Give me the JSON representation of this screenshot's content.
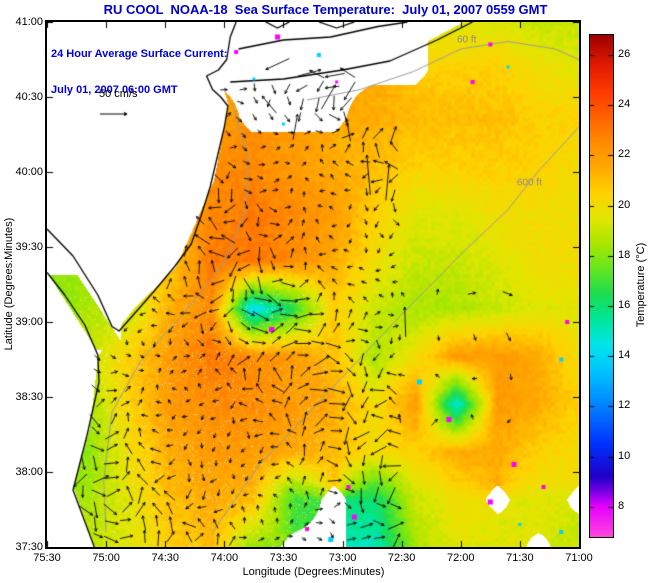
{
  "title": "RU COOL  NOAA-18  Sea Surface Temperature:  July 01, 2007 0559 GMT",
  "title_color": "#0000cc",
  "annotation": {
    "line1": "24 Hour Average Surface Current:",
    "line2": "July 01, 2007 06:00 GMT",
    "color": "#0000dd"
  },
  "scale_label": "50 cm/s",
  "axes": {
    "x_label": "Longitude (Degrees:Minutes)",
    "y_label": "Latitude (Degrees:Minutes)",
    "x_ticks": [
      "75:30",
      "75:00",
      "74:30",
      "74:00",
      "73:30",
      "73:00",
      "72:30",
      "72:00",
      "71:30",
      "71:00"
    ],
    "y_ticks": [
      "41:00",
      "40:30",
      "40:00",
      "39:30",
      "39:00",
      "38:30",
      "38:00",
      "37:30"
    ]
  },
  "colorbar": {
    "label": "Temperature (°C)",
    "ticks": [
      8,
      10,
      12,
      14,
      16,
      18,
      20,
      22,
      24,
      26
    ],
    "vmin": 6.8,
    "vmax": 26.8
  },
  "chart_data": {
    "type": "heatmap",
    "title": "RU COOL NOAA-18 Sea Surface Temperature, July 01, 2007 0559 GMT",
    "xlabel": "Longitude (Degrees:Minutes)",
    "ylabel": "Latitude (Degrees:Minutes)",
    "lon_range": [
      -75.5,
      -71.0
    ],
    "lat_range": [
      37.5,
      41.0
    ],
    "value_range": [
      6.8,
      26.8
    ],
    "sst_grid_degC": {
      "lons": [
        -75.5,
        -75.154,
        -74.808,
        -74.462,
        -74.115,
        -73.769,
        -73.423,
        -73.077,
        -72.731,
        -72.385,
        -72.038,
        -71.692,
        -71.346,
        -71.0
      ],
      "lats": [
        41.0,
        40.682,
        40.364,
        40.045,
        39.727,
        39.409,
        39.091,
        38.773,
        38.455,
        38.136,
        37.818,
        37.5
      ],
      "values": [
        [
          null,
          null,
          null,
          null,
          null,
          null,
          null,
          null,
          null,
          null,
          19.5,
          19.5,
          19,
          19
        ],
        [
          null,
          null,
          null,
          null,
          null,
          null,
          null,
          null,
          null,
          null,
          20.5,
          20.5,
          20,
          19.5
        ],
        [
          null,
          null,
          null,
          22,
          22,
          null,
          null,
          null,
          21.5,
          21,
          21,
          21,
          20.5,
          20.5
        ],
        [
          null,
          null,
          null,
          21.5,
          22.5,
          22.5,
          22,
          21.5,
          21,
          20.5,
          20.5,
          20.5,
          20.5,
          20
        ],
        [
          null,
          null,
          20,
          20.5,
          22.5,
          23,
          22.5,
          22,
          20.5,
          19.5,
          19.5,
          20,
          20,
          20
        ],
        [
          null,
          null,
          19,
          20.5,
          23,
          23,
          22.5,
          21.5,
          20,
          19,
          19,
          19.5,
          20,
          20
        ],
        [
          18,
          18.5,
          19,
          21.5,
          22.5,
          14,
          16.5,
          20.5,
          19,
          18.5,
          18.5,
          19,
          19.5,
          19.5
        ],
        [
          null,
          19,
          20.5,
          22,
          23,
          22.5,
          22,
          21,
          18.5,
          20,
          22,
          22,
          21.5,
          20
        ],
        [
          null,
          18.5,
          20.5,
          22,
          22.5,
          22.5,
          22,
          21.5,
          20,
          22,
          14.5,
          22,
          21.5,
          20.5
        ],
        [
          null,
          18,
          20,
          21.5,
          22,
          22,
          21.5,
          21,
          20,
          20.5,
          21.5,
          21.5,
          20.5,
          20
        ],
        [
          null,
          18.5,
          19.5,
          21,
          21.5,
          21,
          17,
          null,
          16,
          19,
          20,
          null,
          19.5,
          null
        ],
        [
          null,
          19,
          19.5,
          20.5,
          21,
          18,
          null,
          null,
          15,
          18.5,
          19.5,
          19.5,
          null,
          19
        ]
      ]
    },
    "colormap_stops": [
      [
        6.8,
        "#ff46dc"
      ],
      [
        8.0,
        "#e600ff"
      ],
      [
        8.6,
        "#7800e6"
      ],
      [
        9.2,
        "#1e00c8"
      ],
      [
        10.5,
        "#0032ff"
      ],
      [
        12.0,
        "#0082ff"
      ],
      [
        13.5,
        "#00c8ff"
      ],
      [
        14.5,
        "#00e6e6"
      ],
      [
        15.5,
        "#00e696"
      ],
      [
        16.5,
        "#1edc50"
      ],
      [
        17.5,
        "#66e61e"
      ],
      [
        18.5,
        "#aae600"
      ],
      [
        19.5,
        "#e1e600"
      ],
      [
        20.5,
        "#ffd200"
      ],
      [
        21.5,
        "#ffaa00"
      ],
      [
        22.5,
        "#ff8c00"
      ],
      [
        23.5,
        "#ff6400"
      ],
      [
        24.5,
        "#ff3c00"
      ],
      [
        25.5,
        "#e61e00"
      ],
      [
        26.8,
        "#a00000"
      ]
    ],
    "land_boundary": {
      "mainland_coast_lat_lon": [
        [
          37.5,
          -75.1
        ],
        [
          37.9,
          -75.28
        ],
        [
          38.3,
          -75.14
        ],
        [
          38.78,
          -75.07
        ],
        [
          38.9,
          -74.96
        ],
        [
          39.1,
          -74.76
        ],
        [
          39.36,
          -74.42
        ],
        [
          39.6,
          -74.28
        ],
        [
          39.95,
          -74.09
        ],
        [
          40.2,
          -74.03
        ],
        [
          40.45,
          -73.97
        ],
        [
          40.7,
          -74.06
        ],
        [
          41.0,
          -73.93
        ]
      ],
      "li_south_shore_lon_lat": [
        [
          -73.95,
          40.58
        ],
        [
          -72.6,
          40.74
        ],
        [
          -71.87,
          41.05
        ]
      ]
    },
    "coastlines": [
      [
        [
          -75.1,
          37.5
        ],
        [
          -75.28,
          37.88
        ],
        [
          -75.16,
          38.25
        ],
        [
          -75.06,
          38.6
        ],
        [
          -75.07,
          38.78
        ],
        [
          -75.18,
          38.98
        ],
        [
          -75.35,
          39.18
        ],
        [
          -75.5,
          39.33
        ]
      ],
      [
        [
          -75.5,
          39.62
        ],
        [
          -75.28,
          39.44
        ],
        [
          -75.07,
          39.18
        ],
        [
          -74.95,
          38.97
        ],
        [
          -74.89,
          38.94
        ],
        [
          -74.8,
          39.02
        ],
        [
          -74.6,
          39.2
        ],
        [
          -74.42,
          39.37
        ],
        [
          -74.28,
          39.52
        ],
        [
          -74.2,
          39.7
        ],
        [
          -74.12,
          39.9
        ],
        [
          -74.06,
          40.1
        ],
        [
          -74.0,
          40.3
        ],
        [
          -73.97,
          40.44
        ],
        [
          -74.03,
          40.5
        ],
        [
          -74.1,
          40.55
        ],
        [
          -74.15,
          40.64
        ],
        [
          -74.05,
          40.68
        ],
        [
          -73.98,
          40.75
        ],
        [
          -73.95,
          40.9
        ],
        [
          -73.9,
          41.0
        ]
      ],
      [
        [
          -73.95,
          40.6
        ],
        [
          -73.5,
          40.62
        ],
        [
          -73.0,
          40.68
        ],
        [
          -72.6,
          40.74
        ],
        [
          -72.2,
          40.88
        ],
        [
          -71.9,
          41.0
        ]
      ],
      [
        [
          -73.88,
          40.82
        ],
        [
          -73.5,
          40.88
        ],
        [
          -73.1,
          40.9
        ],
        [
          -72.7,
          40.97
        ],
        [
          -72.45,
          41.0
        ]
      ],
      [
        [
          -73.65,
          41.0
        ],
        [
          -73.55,
          40.96
        ],
        [
          -73.45,
          41.0
        ]
      ],
      [
        [
          -73.2,
          41.0
        ],
        [
          -73.05,
          40.96
        ],
        [
          -72.9,
          41.0
        ]
      ]
    ],
    "depth_contours": [
      [
        [
          -73.93,
          40.45
        ],
        [
          -73.8,
          40.1
        ],
        [
          -73.82,
          39.75
        ],
        [
          -74.0,
          39.4
        ],
        [
          -74.35,
          39.05
        ],
        [
          -74.7,
          38.75
        ],
        [
          -74.95,
          38.4
        ],
        [
          -75.02,
          37.95
        ],
        [
          -75.0,
          37.6
        ]
      ],
      [
        [
          -73.3,
          40.48
        ],
        [
          -72.85,
          40.55
        ],
        [
          -72.4,
          40.67
        ],
        [
          -72.0,
          40.82
        ],
        [
          -71.6,
          40.87
        ],
        [
          -71.2,
          40.82
        ],
        [
          -71.0,
          40.75
        ]
      ],
      [
        [
          -71.0,
          40.3
        ],
        [
          -71.35,
          40.0
        ],
        [
          -71.6,
          39.75
        ],
        [
          -72.0,
          39.45
        ],
        [
          -72.5,
          39.05
        ],
        [
          -73.1,
          38.55
        ],
        [
          -73.7,
          38.05
        ],
        [
          -74.1,
          37.6
        ]
      ]
    ],
    "bathymetry_labels": [
      {
        "text": "60 ft",
        "lon": -71.95,
        "lat": 40.88
      },
      {
        "text": "600 ft",
        "lon": -71.42,
        "lat": 39.93
      }
    ],
    "current_arrows": {
      "reference_label": "50 cm/s",
      "regions": [
        {
          "lon_min": -75.32,
          "lon_max": -72.5,
          "lat_min": 37.56,
          "lat_max": 40.33,
          "step_lon": 0.125,
          "step_lat": 0.1,
          "len_min": 5,
          "len_max": 15
        },
        {
          "lon_min": -74.25,
          "lon_max": -72.9,
          "lat_min": 40.36,
          "lat_max": 40.88,
          "step_lon": 0.13,
          "step_lat": 0.1,
          "len_min": 7,
          "len_max": 18
        },
        {
          "lon_min": -72.5,
          "lon_max": -71.55,
          "lat_min": 38.35,
          "lat_max": 39.45,
          "step_lon": 0.3,
          "step_lat": 0.28,
          "len_min": 5,
          "len_max": 11
        }
      ],
      "feature_arrows": [
        {
          "lon": -72.78,
          "lat": 39.98,
          "deg": 95,
          "len": 40
        },
        {
          "lon": -72.62,
          "lat": 39.93,
          "deg": 85,
          "len": 36
        },
        {
          "lon": -72.47,
          "lat": 39.0,
          "deg": 92,
          "len": 30
        },
        {
          "lon": -73.55,
          "lat": 40.72,
          "deg": 205,
          "len": 26
        },
        {
          "lon": -73.28,
          "lat": 40.66,
          "deg": 15,
          "len": 24
        },
        {
          "lon": -73.12,
          "lat": 40.5,
          "deg": 60,
          "len": 28
        },
        {
          "lon": -73.62,
          "lat": 40.45,
          "deg": 130,
          "len": 22
        },
        {
          "lon": -73.4,
          "lat": 40.3,
          "deg": 80,
          "len": 26
        },
        {
          "lon": -72.95,
          "lat": 40.28,
          "deg": 100,
          "len": 23
        }
      ]
    },
    "cloud_specks": [
      {
        "lon": -73.9,
        "lat": 40.8,
        "c": "#ff00ff"
      },
      {
        "lon": -73.75,
        "lat": 40.62,
        "c": "#00d2ff"
      },
      {
        "lon": -73.55,
        "lat": 40.9,
        "c": "#ff00ff"
      },
      {
        "lon": -73.2,
        "lat": 40.78,
        "c": "#00d2ff"
      },
      {
        "lon": -73.05,
        "lat": 40.6,
        "c": "#ff00ff"
      },
      {
        "lon": -73.5,
        "lat": 40.32,
        "c": "#00d2ff"
      },
      {
        "lon": -71.75,
        "lat": 40.85,
        "c": "#ff00ff"
      },
      {
        "lon": -71.6,
        "lat": 40.7,
        "c": "#00d2ff"
      },
      {
        "lon": -71.9,
        "lat": 40.6,
        "c": "#ff00ff"
      },
      {
        "lon": -71.1,
        "lat": 39.0,
        "c": "#ff00ff"
      },
      {
        "lon": -71.15,
        "lat": 38.75,
        "c": "#00d2ff"
      },
      {
        "lon": -73.3,
        "lat": 37.62,
        "c": "#ff00ff"
      },
      {
        "lon": -73.1,
        "lat": 37.55,
        "c": "#00d2ff"
      },
      {
        "lon": -72.9,
        "lat": 37.7,
        "c": "#ff00ff"
      },
      {
        "lon": -72.7,
        "lat": 37.58,
        "c": "#00d2ff"
      },
      {
        "lon": -72.95,
        "lat": 37.9,
        "c": "#ff00ff"
      },
      {
        "lon": -71.75,
        "lat": 37.8,
        "c": "#ff00ff"
      },
      {
        "lon": -71.5,
        "lat": 37.65,
        "c": "#00d2ff"
      },
      {
        "lon": -71.3,
        "lat": 37.9,
        "c": "#ff00ff"
      },
      {
        "lon": -71.15,
        "lat": 37.6,
        "c": "#00d2ff"
      },
      {
        "lon": -71.55,
        "lat": 38.05,
        "c": "#ff00ff"
      },
      {
        "lon": -72.1,
        "lat": 38.35,
        "c": "#ff00ff"
      },
      {
        "lon": -72.35,
        "lat": 38.6,
        "c": "#00d2ff"
      },
      {
        "lon": -73.6,
        "lat": 38.95,
        "c": "#ff00ff"
      }
    ]
  }
}
